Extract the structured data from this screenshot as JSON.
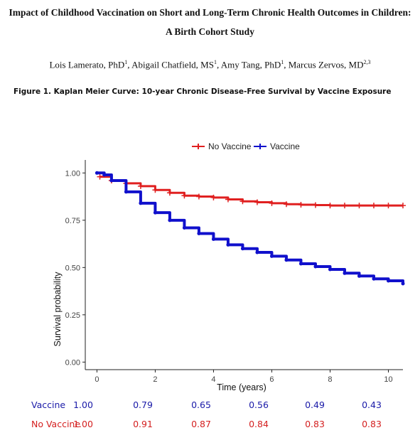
{
  "paper": {
    "title_line1": "Impact of Childhood Vaccination on Short and Long-Term Chronic Health Outcomes in Children:",
    "title_line2": "A Birth Cohort Study",
    "authors": [
      {
        "name": "Lois Lamerato, PhD",
        "sup": "1",
        "sep": ", "
      },
      {
        "name": "Abigail Chatfield, MS",
        "sup": "1",
        "sep": ", "
      },
      {
        "name": "Amy Tang, PhD",
        "sup": "1",
        "sep": ", "
      },
      {
        "name": "Marcus Zervos, MD",
        "sup": "2,3",
        "sep": ""
      }
    ],
    "figure_caption": "Figure 1. Kaplan Meier Curve: 10-year Chronic Disease-Free Survival by Vaccine Exposure"
  },
  "chart_data": {
    "type": "line",
    "title": "",
    "xlabel": "Time (years)",
    "ylabel": "Survival probability",
    "xlim": [
      -0.4,
      10.5
    ],
    "ylim": [
      -0.04,
      1.05
    ],
    "xticks": [
      0,
      2,
      4,
      6,
      8,
      10
    ],
    "yticks": [
      0.0,
      0.25,
      0.5,
      0.75,
      1.0
    ],
    "ytick_labels": [
      "0.00",
      "0.25",
      "0.50",
      "0.75",
      "1.00"
    ],
    "grid": false,
    "legend_position": "top",
    "series": [
      {
        "name": "No Vaccine",
        "color": "#e02020",
        "censored_marks": true,
        "x": [
          0.1,
          0.5,
          1,
          1.5,
          2,
          2.5,
          3,
          3.5,
          4,
          4.5,
          5,
          5.5,
          6,
          6.5,
          7,
          7.5,
          8,
          8.5,
          9,
          9.5,
          10,
          10.5
        ],
        "y": [
          0.98,
          0.96,
          0.945,
          0.93,
          0.91,
          0.895,
          0.88,
          0.875,
          0.87,
          0.86,
          0.85,
          0.845,
          0.84,
          0.835,
          0.832,
          0.83,
          0.828,
          0.828,
          0.828,
          0.828,
          0.828,
          0.828
        ]
      },
      {
        "name": "Vaccine",
        "color": "#1010cc",
        "censored_marks": false,
        "x": [
          0,
          0.25,
          0.5,
          1,
          1.5,
          2,
          2.5,
          3,
          3.5,
          4,
          4.5,
          5,
          5.5,
          6,
          6.5,
          7,
          7.5,
          8,
          8.5,
          9,
          9.5,
          10,
          10.5
        ],
        "y": [
          1.0,
          0.99,
          0.96,
          0.9,
          0.84,
          0.79,
          0.75,
          0.71,
          0.68,
          0.65,
          0.62,
          0.6,
          0.58,
          0.56,
          0.54,
          0.52,
          0.505,
          0.49,
          0.47,
          0.455,
          0.44,
          0.43,
          0.415
        ]
      }
    ]
  },
  "risk_table": {
    "times": [
      0,
      2,
      4,
      6,
      8,
      10
    ],
    "rows": [
      {
        "label": "Vaccine",
        "color": "#1a1aa8",
        "values": [
          "1.00",
          "0.79",
          "0.65",
          "0.56",
          "0.49",
          "0.43"
        ]
      },
      {
        "label": "No Vaccine",
        "color": "#d42020",
        "values": [
          "1.00",
          "0.91",
          "0.87",
          "0.84",
          "0.83",
          "0.83"
        ]
      }
    ]
  }
}
